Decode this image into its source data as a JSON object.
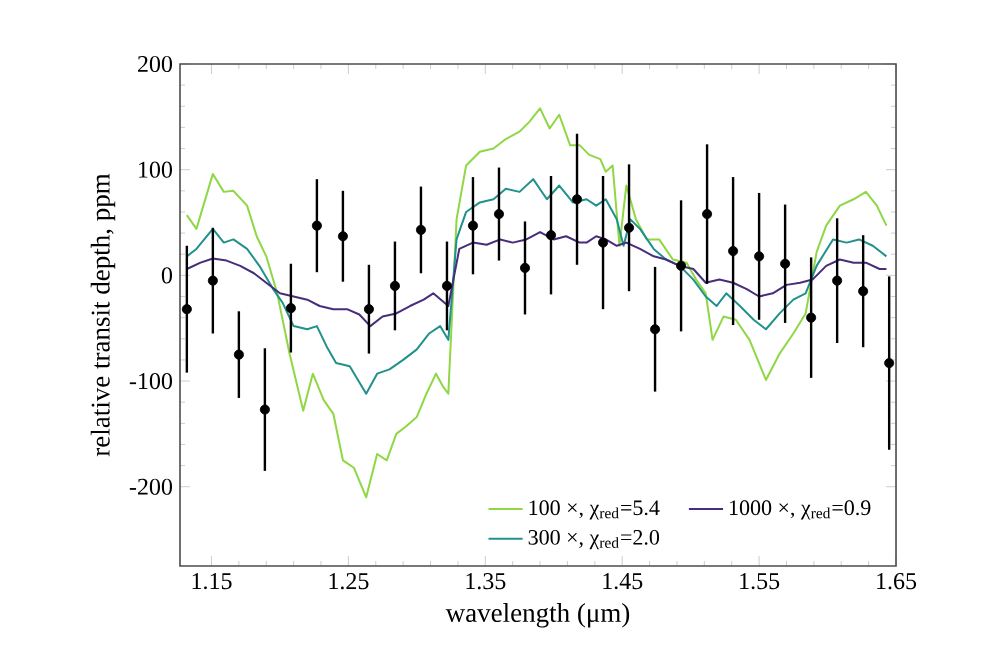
{
  "chart_data": {
    "type": "line",
    "xlabel": "wavelength (μm)",
    "ylabel": "relative transit depth, ppm",
    "xlim": [
      1.127,
      1.65
    ],
    "ylim": [
      -275,
      200
    ],
    "xticks": [
      1.15,
      1.25,
      1.35,
      1.45,
      1.55,
      1.65
    ],
    "yticks": [
      -200,
      -100,
      0,
      100,
      200
    ],
    "legend": "bottom right",
    "grid": false,
    "series": [
      {
        "name": "100 ×, χ$_{red}$=5.4",
        "color": "#8fd744",
        "marker": "none",
        "x": [
          1.132,
          1.139,
          1.151,
          1.159,
          1.166,
          1.176,
          1.183,
          1.19,
          1.198,
          1.207,
          1.217,
          1.224,
          1.232,
          1.239,
          1.246,
          1.254,
          1.263,
          1.271,
          1.278,
          1.285,
          1.292,
          1.3,
          1.307,
          1.314,
          1.319,
          1.323,
          1.329,
          1.336,
          1.346,
          1.356,
          1.365,
          1.375,
          1.382,
          1.39,
          1.397,
          1.404,
          1.412,
          1.419,
          1.426,
          1.434,
          1.438,
          1.443,
          1.448,
          1.453,
          1.46,
          1.468,
          1.477,
          1.487,
          1.497,
          1.504,
          1.511,
          1.516,
          1.524,
          1.533,
          1.543,
          1.555,
          1.565,
          1.575,
          1.584,
          1.592,
          1.599,
          1.609,
          1.619,
          1.628,
          1.636,
          1.643
        ],
        "values": [
          57,
          44,
          96,
          79,
          80,
          66,
          37,
          18,
          -17,
          -74,
          -128,
          -93,
          -118,
          -131,
          -175,
          -182,
          -210,
          -169,
          -175,
          -150,
          -143,
          -134,
          -112,
          -93,
          -105,
          -112,
          53,
          104,
          117,
          120,
          129,
          136,
          145,
          158,
          139,
          152,
          123,
          123,
          114,
          110,
          98,
          104,
          28,
          85,
          53,
          34,
          34,
          15,
          12,
          -4,
          -17,
          -61,
          -39,
          -42,
          -61,
          -99,
          -74,
          -55,
          -36,
          22,
          47,
          66,
          72,
          79,
          66,
          47
        ]
      },
      {
        "name": "300 ×, χ$_{red}$=2.0",
        "color": "#21918c",
        "marker": "none",
        "x": [
          1.132,
          1.139,
          1.151,
          1.159,
          1.166,
          1.176,
          1.185,
          1.195,
          1.202,
          1.21,
          1.22,
          1.227,
          1.234,
          1.241,
          1.251,
          1.263,
          1.271,
          1.28,
          1.29,
          1.3,
          1.309,
          1.317,
          1.323,
          1.329,
          1.336,
          1.346,
          1.356,
          1.365,
          1.375,
          1.385,
          1.395,
          1.404,
          1.414,
          1.424,
          1.431,
          1.438,
          1.446,
          1.451,
          1.456,
          1.463,
          1.473,
          1.482,
          1.492,
          1.502,
          1.511,
          1.519,
          1.526,
          1.536,
          1.546,
          1.555,
          1.565,
          1.575,
          1.584,
          1.592,
          1.604,
          1.614,
          1.623,
          1.633,
          1.643
        ],
        "values": [
          18,
          25,
          44,
          31,
          34,
          25,
          9,
          -13,
          -26,
          -48,
          -51,
          -48,
          -67,
          -83,
          -86,
          -112,
          -93,
          -89,
          -80,
          -70,
          -55,
          -48,
          -61,
          34,
          60,
          69,
          72,
          82,
          79,
          91,
          72,
          85,
          69,
          72,
          66,
          72,
          53,
          28,
          53,
          44,
          25,
          15,
          9,
          -4,
          -20,
          -29,
          -17,
          -29,
          -42,
          -51,
          -36,
          -23,
          -17,
          9,
          34,
          31,
          34,
          28,
          18
        ]
      },
      {
        "name": "1000 ×, χ$_{red}$=0.9",
        "color": "#472d7b",
        "marker": "none",
        "x": [
          1.132,
          1.142,
          1.151,
          1.161,
          1.171,
          1.181,
          1.19,
          1.2,
          1.21,
          1.22,
          1.229,
          1.239,
          1.249,
          1.258,
          1.266,
          1.275,
          1.285,
          1.295,
          1.305,
          1.312,
          1.323,
          1.331,
          1.341,
          1.351,
          1.361,
          1.37,
          1.38,
          1.39,
          1.4,
          1.409,
          1.419,
          1.424,
          1.431,
          1.438,
          1.446,
          1.453,
          1.463,
          1.473,
          1.482,
          1.492,
          1.502,
          1.511,
          1.521,
          1.531,
          1.541,
          1.55,
          1.56,
          1.57,
          1.58,
          1.589,
          1.599,
          1.609,
          1.619,
          1.628,
          1.638,
          1.643
        ],
        "values": [
          6,
          12,
          16,
          14,
          9,
          2,
          -7,
          -17,
          -20,
          -23,
          -29,
          -32,
          -32,
          -37,
          -48,
          -39,
          -36,
          -29,
          -23,
          -17,
          -29,
          25,
          31,
          29,
          34,
          31,
          34,
          41,
          34,
          37,
          31,
          31,
          37,
          34,
          28,
          31,
          25,
          18,
          15,
          9,
          6,
          -7,
          -4,
          -7,
          -13,
          -20,
          -17,
          -9,
          -7,
          -4,
          9,
          15,
          12,
          12,
          6,
          6
        ]
      },
      {
        "color": "#000000",
        "type": "scatter",
        "marker": "circle",
        "x": [
          1.132,
          1.151,
          1.17,
          1.189,
          1.208,
          1.227,
          1.246,
          1.265,
          1.284,
          1.303,
          1.322,
          1.341,
          1.36,
          1.379,
          1.398,
          1.417,
          1.436,
          1.455,
          1.474,
          1.493,
          1.512,
          1.531,
          1.55,
          1.569,
          1.588,
          1.607,
          1.626,
          1.645
        ],
        "values": [
          -32,
          -5,
          -75,
          -127,
          -31,
          47,
          37,
          -32,
          -10,
          43,
          -10,
          47,
          58,
          7,
          38,
          72,
          31,
          45,
          -51,
          9,
          58,
          23,
          18,
          11,
          -40,
          -5,
          -15,
          -83
        ],
        "errors": [
          60,
          50,
          41,
          58,
          42,
          44,
          43,
          42,
          42,
          41,
          42,
          46,
          44,
          44,
          56,
          62,
          63,
          60,
          59,
          62,
          66,
          70,
          60,
          56,
          57,
          59,
          53,
          82
        ]
      }
    ]
  }
}
